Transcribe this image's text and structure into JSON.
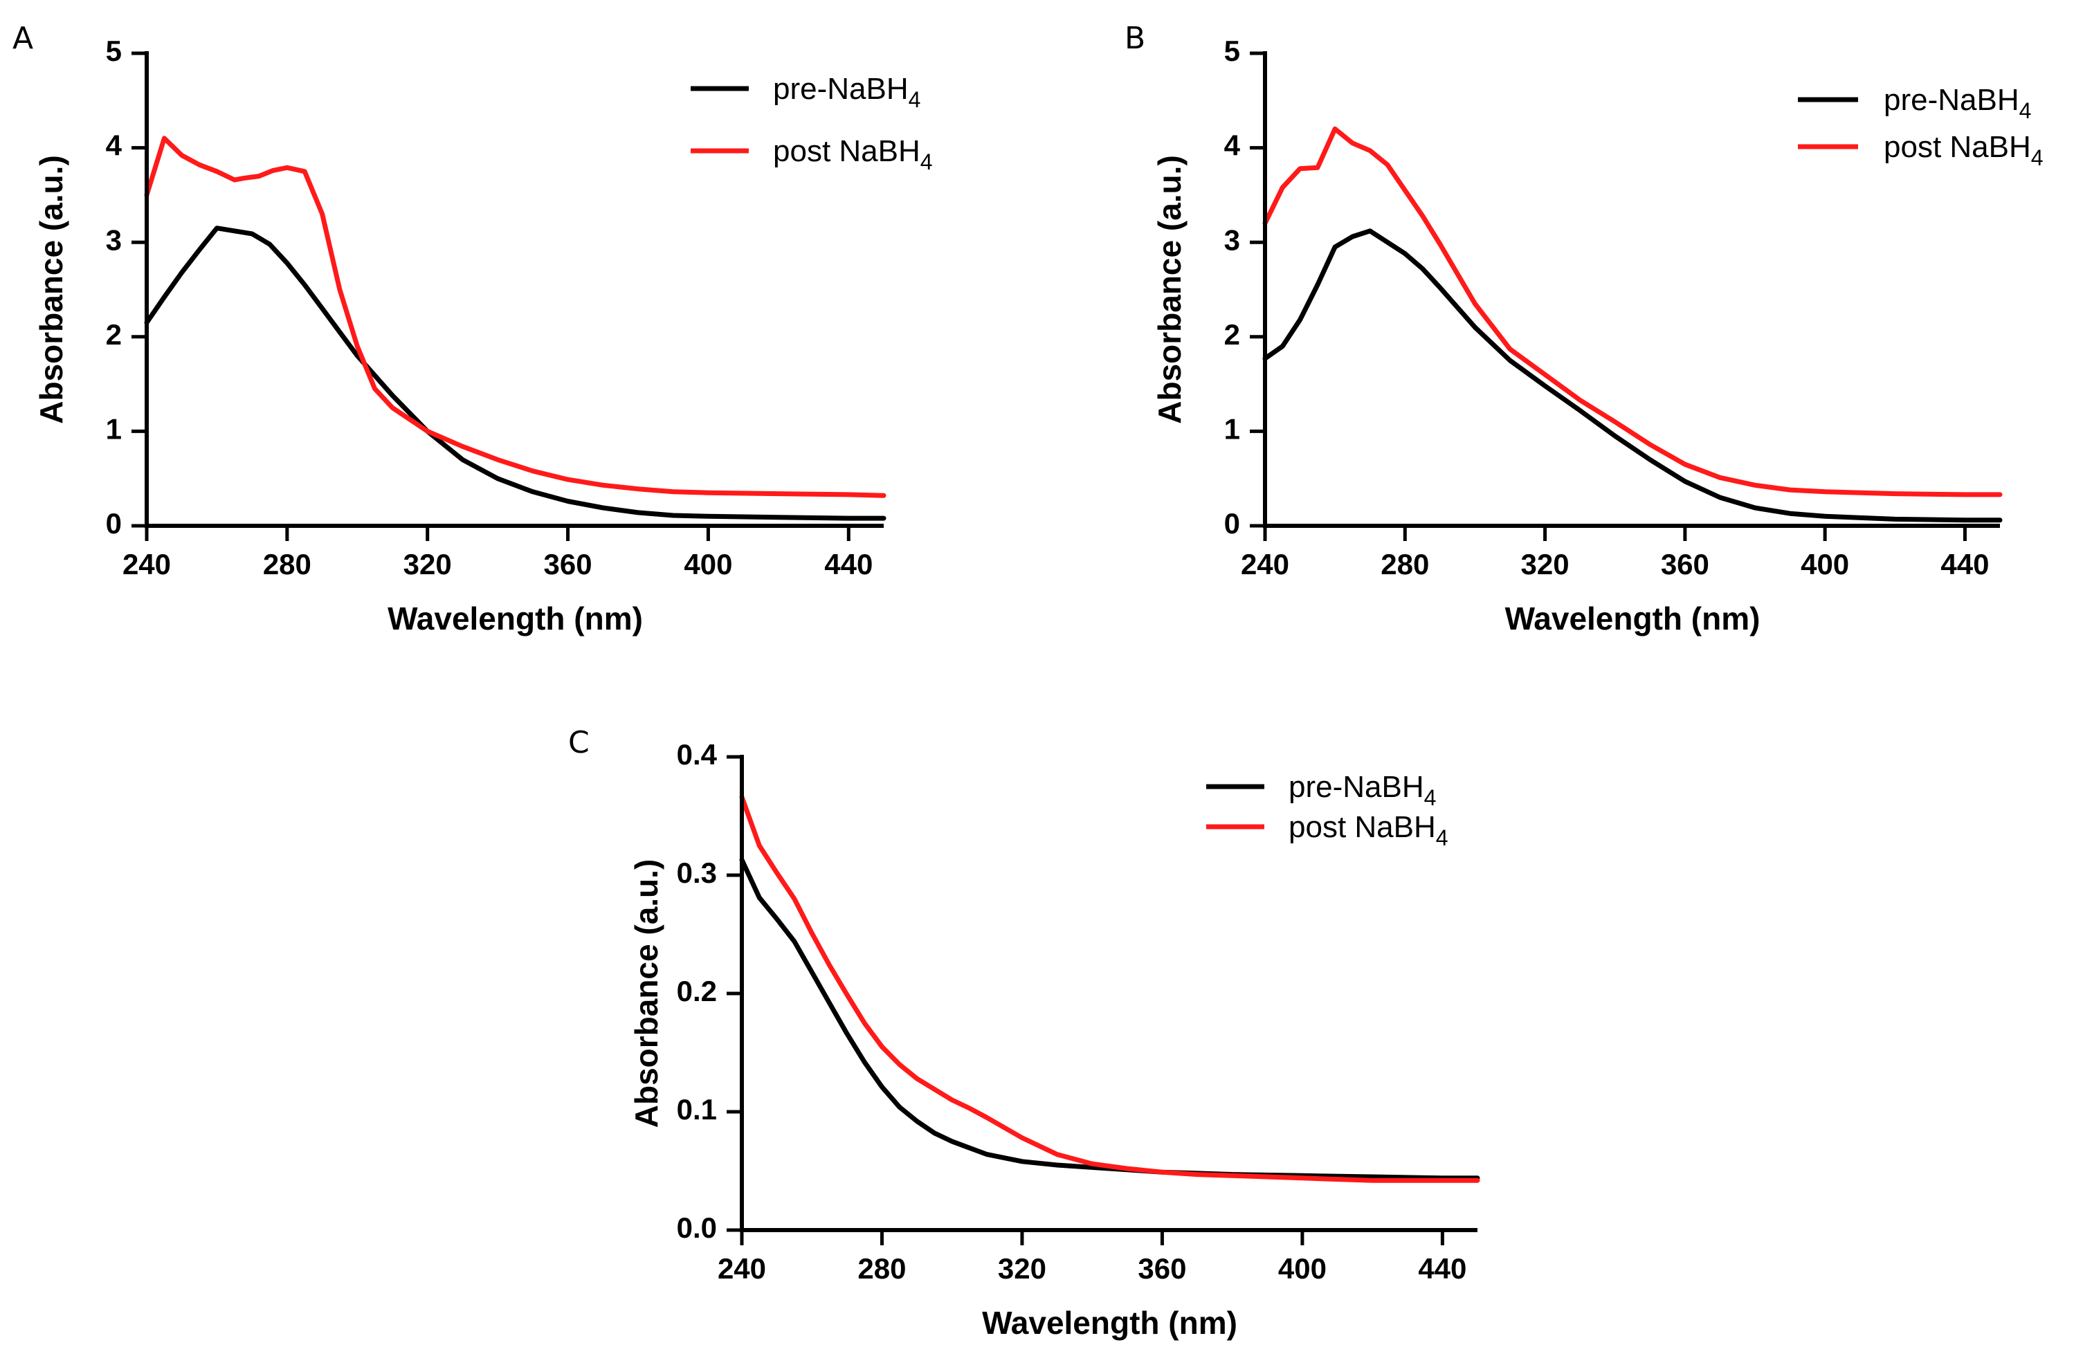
{
  "chart_data": [
    {
      "panel": "A",
      "type": "line",
      "xlabel": "Wavelength (nm)",
      "ylabel": "Absorbance (a.u.)",
      "xlim": [
        240,
        450
      ],
      "ylim": [
        0,
        5
      ],
      "xticks": [
        240,
        280,
        320,
        360,
        400,
        440
      ],
      "yticks": [
        0,
        1,
        2,
        3,
        4,
        5
      ],
      "ytick_labels": [
        "0",
        "1",
        "2",
        "3",
        "4",
        "5"
      ],
      "legend_position": "top-right",
      "series": [
        {
          "name": "pre-NaBH4",
          "label_main": "pre-NaBH",
          "label_sub": "4",
          "color": "#000000",
          "x": [
            240,
            245,
            250,
            255,
            260,
            265,
            270,
            275,
            280,
            285,
            290,
            295,
            300,
            310,
            320,
            330,
            340,
            350,
            360,
            370,
            380,
            390,
            400,
            420,
            440,
            450
          ],
          "y": [
            2.15,
            2.42,
            2.68,
            2.92,
            3.15,
            3.12,
            3.09,
            2.98,
            2.78,
            2.55,
            2.3,
            2.05,
            1.8,
            1.38,
            1.0,
            0.7,
            0.5,
            0.36,
            0.26,
            0.19,
            0.14,
            0.11,
            0.1,
            0.09,
            0.08,
            0.08
          ]
        },
        {
          "name": "post NaBH4",
          "label_main": "post NaBH",
          "label_sub": "4",
          "color": "#ff1a1a",
          "x": [
            240,
            245,
            250,
            255,
            260,
            265,
            268,
            272,
            276,
            280,
            285,
            290,
            295,
            300,
            305,
            310,
            320,
            330,
            340,
            350,
            360,
            370,
            380,
            390,
            400,
            420,
            440,
            450
          ],
          "y": [
            3.5,
            4.1,
            3.92,
            3.82,
            3.75,
            3.66,
            3.68,
            3.7,
            3.76,
            3.79,
            3.75,
            3.3,
            2.5,
            1.9,
            1.45,
            1.25,
            1.0,
            0.84,
            0.7,
            0.58,
            0.49,
            0.43,
            0.39,
            0.36,
            0.35,
            0.34,
            0.33,
            0.32
          ]
        }
      ]
    },
    {
      "panel": "B",
      "type": "line",
      "xlabel": "Wavelength (nm)",
      "ylabel": "Absorbance (a.u.)",
      "xlim": [
        240,
        450
      ],
      "ylim": [
        0,
        5
      ],
      "xticks": [
        240,
        280,
        320,
        360,
        400,
        440
      ],
      "yticks": [
        0,
        1,
        2,
        3,
        4,
        5
      ],
      "ytick_labels": [
        "0",
        "1",
        "2",
        "3",
        "4",
        "5"
      ],
      "legend_position": "top-right",
      "series": [
        {
          "name": "pre-NaBH4",
          "label_main": "pre-NaBH",
          "label_sub": "4",
          "color": "#000000",
          "x": [
            240,
            245,
            250,
            255,
            260,
            265,
            270,
            275,
            280,
            285,
            290,
            300,
            310,
            320,
            330,
            340,
            350,
            360,
            370,
            380,
            390,
            400,
            420,
            440,
            450
          ],
          "y": [
            1.77,
            1.9,
            2.18,
            2.55,
            2.95,
            3.06,
            3.12,
            3.0,
            2.88,
            2.72,
            2.52,
            2.1,
            1.75,
            1.48,
            1.22,
            0.95,
            0.7,
            0.47,
            0.3,
            0.19,
            0.13,
            0.1,
            0.07,
            0.06,
            0.06
          ]
        },
        {
          "name": "post NaBH4",
          "label_main": "post NaBH",
          "label_sub": "4",
          "color": "#ff1a1a",
          "x": [
            240,
            245,
            250,
            255,
            260,
            265,
            270,
            275,
            280,
            285,
            290,
            300,
            310,
            320,
            330,
            340,
            350,
            360,
            370,
            380,
            390,
            400,
            420,
            440,
            450
          ],
          "y": [
            3.2,
            3.58,
            3.78,
            3.79,
            4.2,
            4.05,
            3.97,
            3.82,
            3.55,
            3.28,
            2.98,
            2.35,
            1.87,
            1.6,
            1.33,
            1.1,
            0.86,
            0.65,
            0.51,
            0.43,
            0.38,
            0.36,
            0.34,
            0.33,
            0.33
          ]
        }
      ]
    },
    {
      "panel": "C",
      "type": "line",
      "xlabel": "Wavelength (nm)",
      "ylabel": "Absorbance (a.u.)",
      "xlim": [
        240,
        450
      ],
      "ylim": [
        0,
        0.4
      ],
      "xticks": [
        240,
        280,
        320,
        360,
        400,
        440
      ],
      "yticks": [
        0,
        0.1,
        0.2,
        0.3,
        0.4
      ],
      "ytick_labels": [
        "0.0",
        "0.1",
        "0.2",
        "0.3",
        "0.4"
      ],
      "legend_position": "top-right",
      "series": [
        {
          "name": "pre-NaBH4",
          "label_main": "pre-NaBH",
          "label_sub": "4",
          "color": "#000000",
          "x": [
            240,
            245,
            250,
            255,
            260,
            265,
            270,
            275,
            280,
            285,
            290,
            295,
            300,
            310,
            320,
            330,
            340,
            350,
            360,
            370,
            380,
            400,
            420,
            440,
            450
          ],
          "y": [
            0.313,
            0.281,
            0.263,
            0.244,
            0.218,
            0.192,
            0.166,
            0.142,
            0.121,
            0.104,
            0.092,
            0.082,
            0.075,
            0.064,
            0.058,
            0.055,
            0.053,
            0.051,
            0.049,
            0.048,
            0.047,
            0.046,
            0.045,
            0.044,
            0.044
          ]
        },
        {
          "name": "post NaBH4",
          "label_main": "post NaBH",
          "label_sub": "4",
          "color": "#ff1a1a",
          "x": [
            240,
            245,
            250,
            255,
            260,
            265,
            270,
            275,
            280,
            285,
            290,
            295,
            300,
            305,
            310,
            320,
            330,
            340,
            350,
            360,
            370,
            380,
            400,
            420,
            440,
            450
          ],
          "y": [
            0.366,
            0.325,
            0.302,
            0.28,
            0.251,
            0.224,
            0.199,
            0.175,
            0.155,
            0.14,
            0.128,
            0.119,
            0.11,
            0.103,
            0.095,
            0.078,
            0.064,
            0.056,
            0.052,
            0.049,
            0.047,
            0.046,
            0.044,
            0.042,
            0.042,
            0.042
          ]
        }
      ]
    }
  ]
}
